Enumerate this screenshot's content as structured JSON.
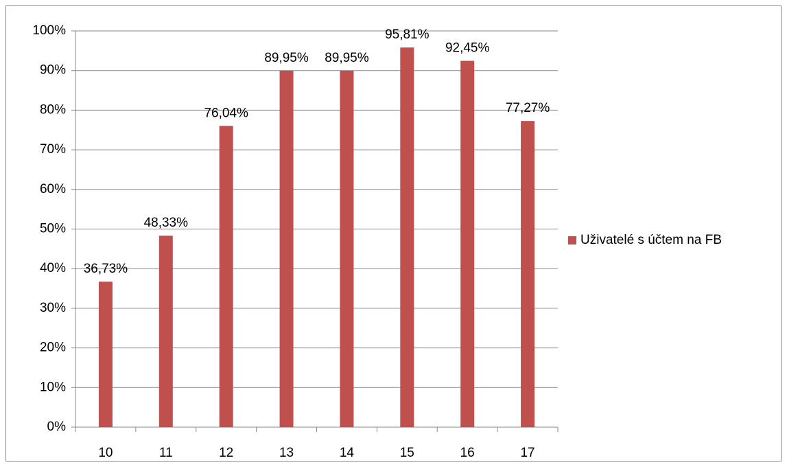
{
  "chart_data": {
    "type": "bar",
    "categories": [
      "10",
      "11",
      "12",
      "13",
      "14",
      "15",
      "16",
      "17"
    ],
    "series": [
      {
        "name": "Uživatelé s účtem na FB",
        "color": "#c0504d",
        "values": [
          36.73,
          48.33,
          76.04,
          89.95,
          89.95,
          95.81,
          92.45,
          77.27
        ],
        "value_labels": [
          "36,73%",
          "48,33%",
          "76,04%",
          "89,95%",
          "89,95%",
          "95,81%",
          "92,45%",
          "77,27%"
        ]
      }
    ],
    "ylim": [
      0,
      100
    ],
    "yticks": [
      {
        "value": 0,
        "label": "0%"
      },
      {
        "value": 10,
        "label": "10%"
      },
      {
        "value": 20,
        "label": "20%"
      },
      {
        "value": 30,
        "label": "30%"
      },
      {
        "value": 40,
        "label": "40%"
      },
      {
        "value": 50,
        "label": "50%"
      },
      {
        "value": 60,
        "label": "60%"
      },
      {
        "value": 70,
        "label": "70%"
      },
      {
        "value": 80,
        "label": "80%"
      },
      {
        "value": 90,
        "label": "90%"
      },
      {
        "value": 100,
        "label": "100%"
      }
    ],
    "grid": true,
    "legend": "right"
  }
}
